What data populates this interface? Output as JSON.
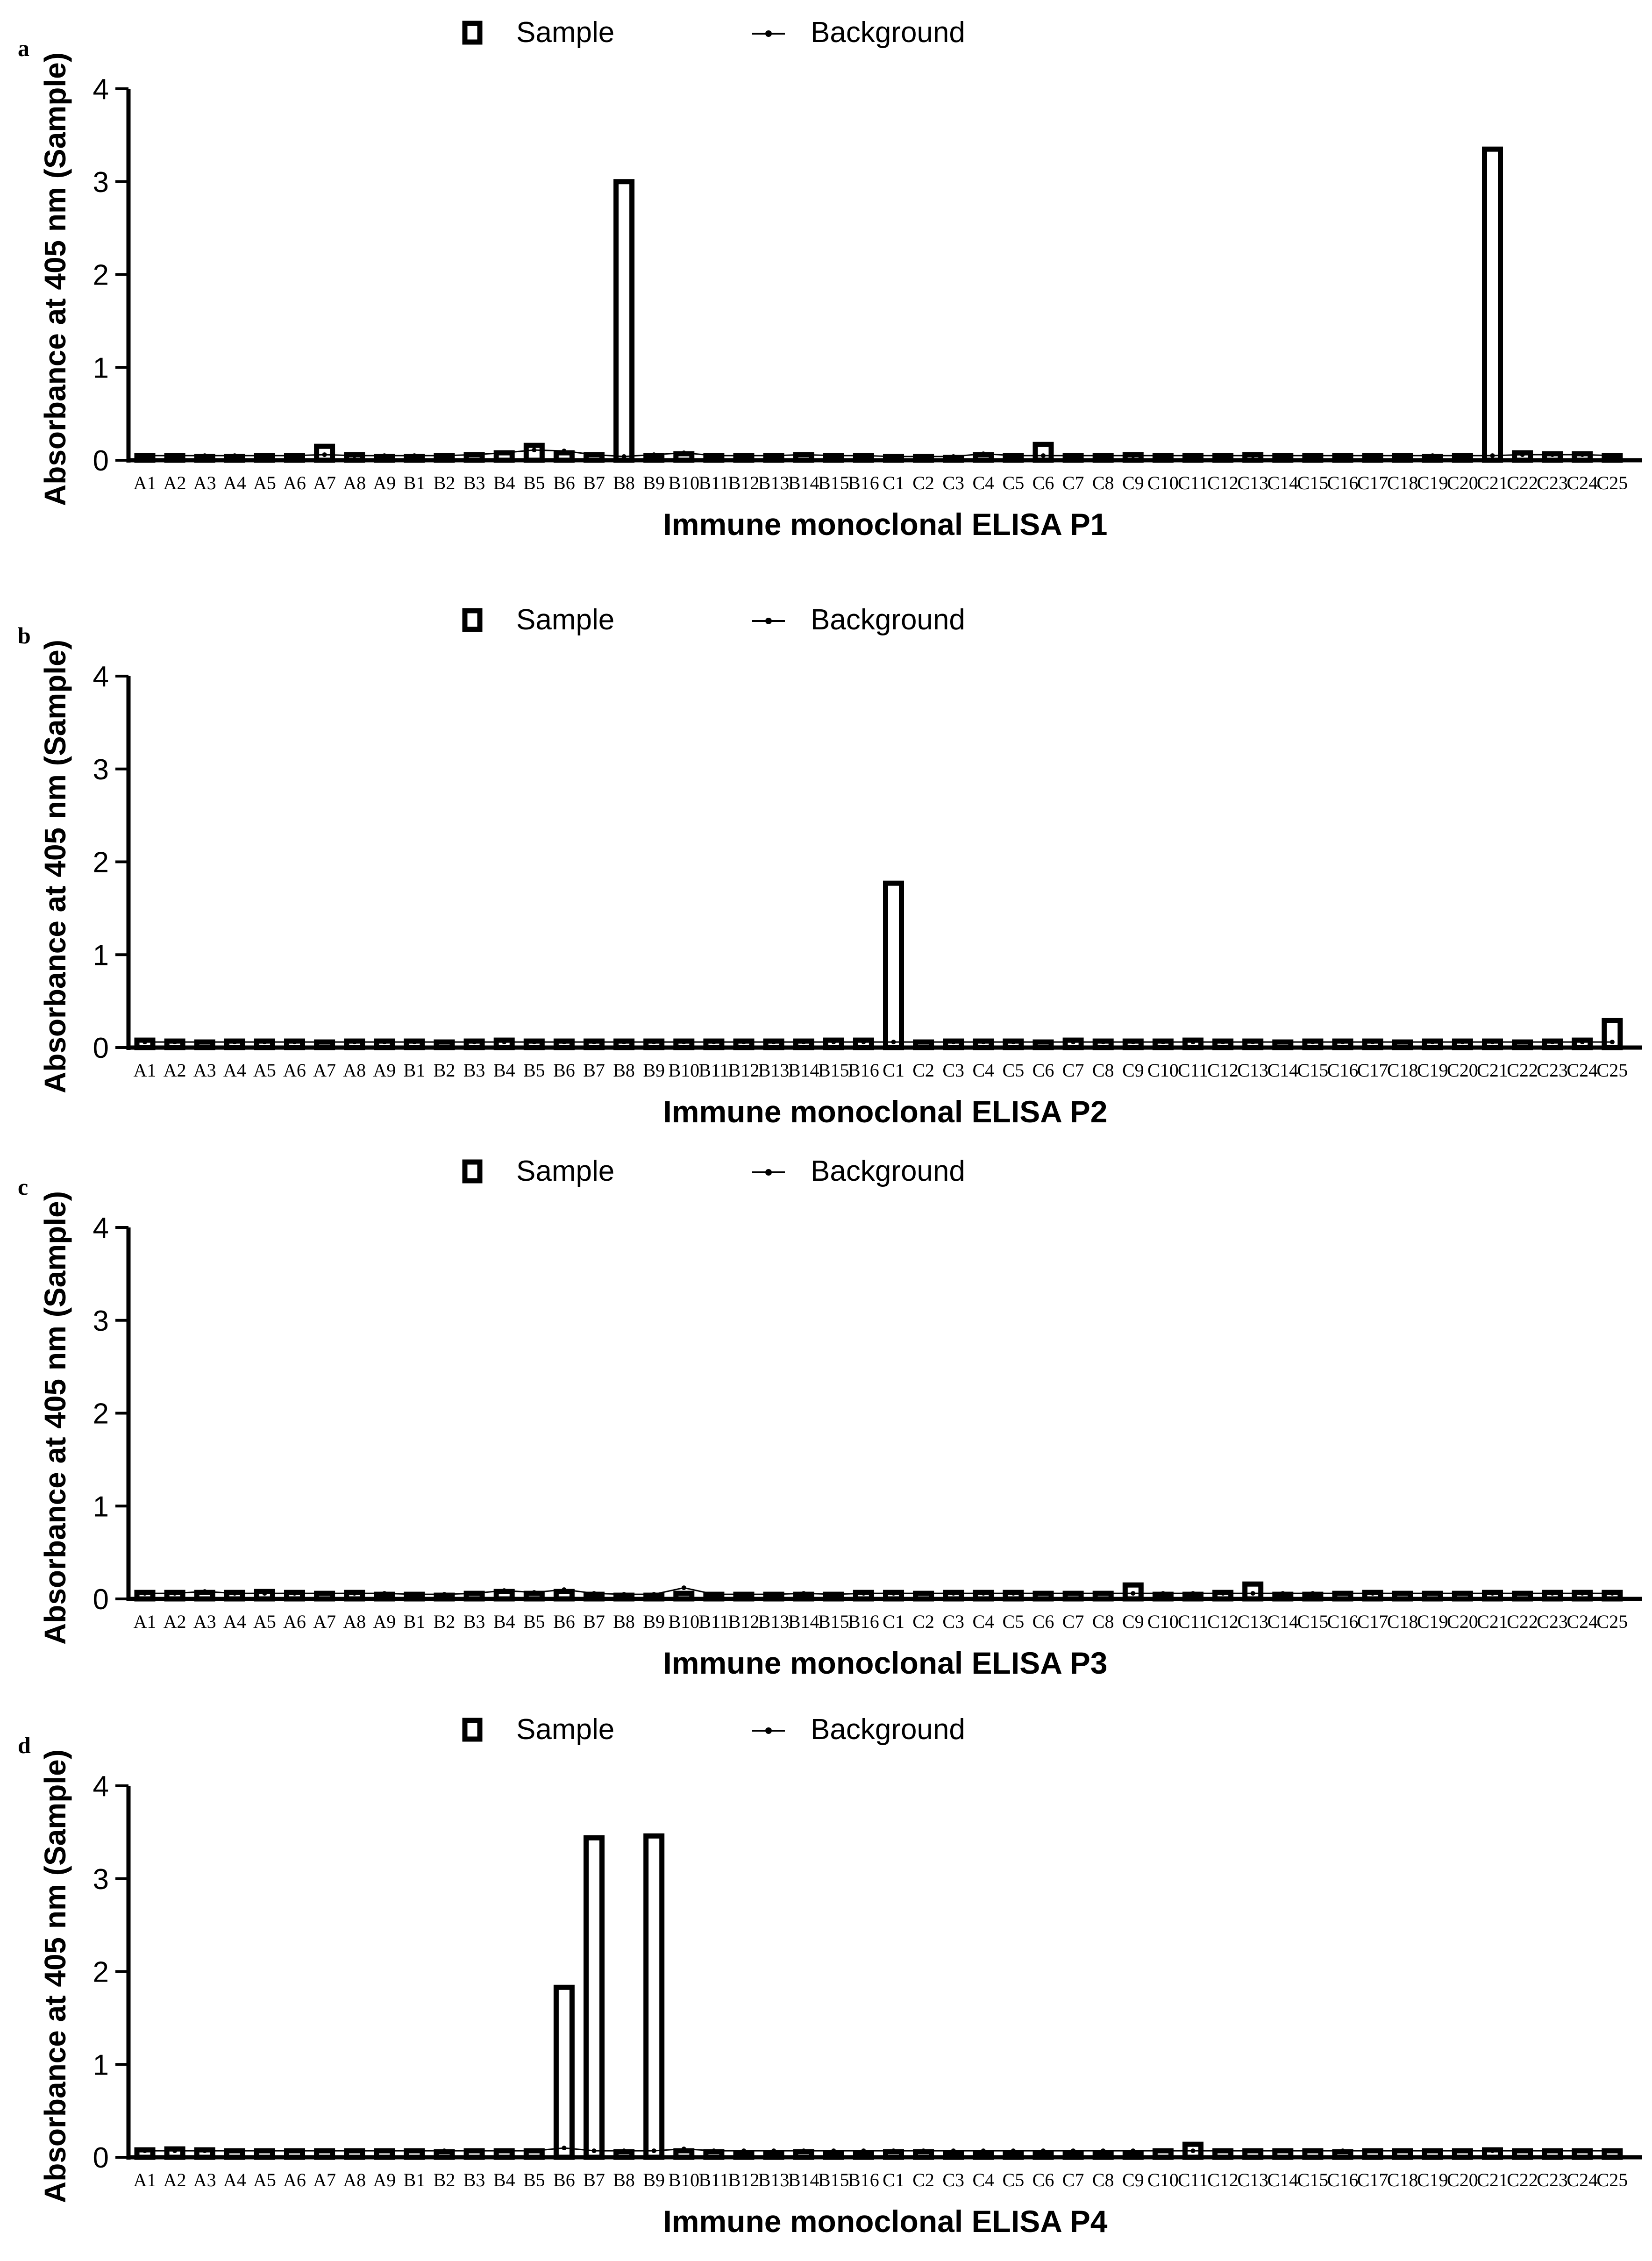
{
  "legend": {
    "sample": "Sample",
    "background": "Background"
  },
  "chart_data": [
    {
      "type": "bar",
      "panel": "a",
      "title": "",
      "xlabel": "Immune monoclonal ELISA P1",
      "ylabel": "Absorbance at 405 nm (Sample)",
      "ylim": [
        0,
        4
      ],
      "yticks": [
        "0",
        "1",
        "2",
        "3",
        "4"
      ],
      "categories": [
        "A1",
        "A2",
        "A3",
        "A4",
        "A5",
        "A6",
        "A7",
        "A8",
        "A9",
        "B1",
        "B2",
        "B3",
        "B4",
        "B5",
        "B6",
        "B7",
        "B8",
        "B9",
        "B10",
        "B11",
        "B12",
        "B13",
        "B14",
        "B15",
        "B16",
        "C1",
        "C2",
        "C3",
        "C4",
        "C5",
        "C6",
        "C7",
        "C8",
        "C9",
        "C10",
        "C11",
        "C12",
        "C13",
        "C14",
        "C15",
        "C16",
        "C17",
        "C18",
        "C19",
        "C20",
        "C21",
        "C22",
        "C23",
        "C24",
        "C25"
      ],
      "series": [
        {
          "name": "Sample",
          "values": [
            0.05,
            0.05,
            0.04,
            0.04,
            0.05,
            0.05,
            0.15,
            0.06,
            0.04,
            0.04,
            0.05,
            0.06,
            0.08,
            0.16,
            0.08,
            0.06,
            3.0,
            0.05,
            0.07,
            0.05,
            0.05,
            0.05,
            0.06,
            0.05,
            0.05,
            0.04,
            0.04,
            0.03,
            0.06,
            0.05,
            0.17,
            0.05,
            0.05,
            0.06,
            0.05,
            0.05,
            0.05,
            0.06,
            0.05,
            0.05,
            0.05,
            0.05,
            0.05,
            0.04,
            0.05,
            3.35,
            0.08,
            0.07,
            0.07,
            0.05
          ]
        },
        {
          "name": "Background",
          "values": [
            0.05,
            0.05,
            0.05,
            0.05,
            0.05,
            0.05,
            0.06,
            0.05,
            0.05,
            0.05,
            0.05,
            0.06,
            0.08,
            0.11,
            0.1,
            0.06,
            0.04,
            0.06,
            0.08,
            0.05,
            0.05,
            0.05,
            0.06,
            0.05,
            0.05,
            0.04,
            0.04,
            0.04,
            0.07,
            0.05,
            0.05,
            0.05,
            0.05,
            0.05,
            0.05,
            0.05,
            0.05,
            0.05,
            0.05,
            0.05,
            0.05,
            0.05,
            0.05,
            0.05,
            0.05,
            0.05,
            0.06,
            0.06,
            0.06,
            0.05
          ]
        }
      ]
    },
    {
      "type": "bar",
      "panel": "b",
      "title": "",
      "xlabel": "Immune monoclonal ELISA P2",
      "ylabel": "Absorbance at 405 nm (Sample)",
      "ylim": [
        0,
        4
      ],
      "yticks": [
        "0",
        "1",
        "2",
        "3",
        "4"
      ],
      "categories": [
        "A1",
        "A2",
        "A3",
        "A4",
        "A5",
        "A6",
        "A7",
        "A8",
        "A9",
        "B1",
        "B2",
        "B3",
        "B4",
        "B5",
        "B6",
        "B7",
        "B8",
        "B9",
        "B10",
        "B11",
        "B12",
        "B13",
        "B14",
        "B15",
        "B16",
        "C1",
        "C2",
        "C3",
        "C4",
        "C5",
        "C6",
        "C7",
        "C8",
        "C9",
        "C10",
        "C11",
        "C12",
        "C13",
        "C14",
        "C15",
        "C16",
        "C17",
        "C18",
        "C19",
        "C20",
        "C21",
        "C22",
        "C23",
        "C24",
        "C25"
      ],
      "series": [
        {
          "name": "Sample",
          "values": [
            0.08,
            0.07,
            0.06,
            0.07,
            0.07,
            0.07,
            0.06,
            0.07,
            0.07,
            0.07,
            0.06,
            0.07,
            0.08,
            0.07,
            0.07,
            0.07,
            0.07,
            0.07,
            0.07,
            0.07,
            0.07,
            0.07,
            0.07,
            0.08,
            0.08,
            1.77,
            0.06,
            0.07,
            0.07,
            0.07,
            0.06,
            0.08,
            0.07,
            0.07,
            0.07,
            0.08,
            0.07,
            0.07,
            0.06,
            0.07,
            0.07,
            0.07,
            0.06,
            0.07,
            0.07,
            0.07,
            0.06,
            0.07,
            0.08,
            0.29
          ]
        },
        {
          "name": "Background",
          "values": [
            0.06,
            0.06,
            0.06,
            0.06,
            0.06,
            0.06,
            0.06,
            0.06,
            0.06,
            0.06,
            0.06,
            0.06,
            0.06,
            0.06,
            0.06,
            0.06,
            0.06,
            0.06,
            0.06,
            0.06,
            0.06,
            0.06,
            0.06,
            0.06,
            0.06,
            0.06,
            0.06,
            0.06,
            0.06,
            0.06,
            0.06,
            0.06,
            0.06,
            0.06,
            0.06,
            0.06,
            0.06,
            0.06,
            0.06,
            0.06,
            0.06,
            0.06,
            0.06,
            0.06,
            0.06,
            0.06,
            0.06,
            0.06,
            0.06,
            0.06
          ]
        }
      ]
    },
    {
      "type": "bar",
      "panel": "c",
      "title": "",
      "xlabel": "Immune monoclonal ELISA P3",
      "ylabel": "Absorbance at 405 nm (Sample)",
      "ylim": [
        0,
        4
      ],
      "yticks": [
        "0",
        "1",
        "2",
        "3",
        "4"
      ],
      "categories": [
        "A1",
        "A2",
        "A3",
        "A4",
        "A5",
        "A6",
        "A7",
        "A8",
        "A9",
        "B1",
        "B2",
        "B3",
        "B4",
        "B5",
        "B6",
        "B7",
        "B8",
        "B9",
        "B10",
        "B11",
        "B12",
        "B13",
        "B14",
        "B15",
        "B16",
        "C1",
        "C2",
        "C3",
        "C4",
        "C5",
        "C6",
        "C7",
        "C8",
        "C9",
        "C10",
        "C11",
        "C12",
        "C13",
        "C14",
        "C15",
        "C16",
        "C17",
        "C18",
        "C19",
        "C20",
        "C21",
        "C22",
        "C23",
        "C24",
        "C25"
      ],
      "series": [
        {
          "name": "Sample",
          "values": [
            0.07,
            0.07,
            0.07,
            0.07,
            0.08,
            0.07,
            0.06,
            0.07,
            0.05,
            0.05,
            0.04,
            0.06,
            0.08,
            0.06,
            0.08,
            0.05,
            0.04,
            0.04,
            0.06,
            0.05,
            0.05,
            0.05,
            0.05,
            0.05,
            0.07,
            0.07,
            0.06,
            0.07,
            0.07,
            0.07,
            0.06,
            0.06,
            0.06,
            0.15,
            0.05,
            0.05,
            0.07,
            0.16,
            0.05,
            0.05,
            0.06,
            0.07,
            0.06,
            0.06,
            0.06,
            0.07,
            0.06,
            0.07,
            0.07,
            0.07
          ]
        },
        {
          "name": "Background",
          "values": [
            0.06,
            0.06,
            0.08,
            0.06,
            0.06,
            0.06,
            0.06,
            0.06,
            0.06,
            0.05,
            0.05,
            0.06,
            0.09,
            0.07,
            0.1,
            0.06,
            0.05,
            0.05,
            0.12,
            0.05,
            0.05,
            0.05,
            0.06,
            0.05,
            0.06,
            0.06,
            0.06,
            0.06,
            0.06,
            0.06,
            0.06,
            0.06,
            0.06,
            0.06,
            0.06,
            0.06,
            0.06,
            0.06,
            0.06,
            0.06,
            0.06,
            0.06,
            0.06,
            0.06,
            0.06,
            0.06,
            0.06,
            0.06,
            0.06,
            0.06
          ]
        }
      ]
    },
    {
      "type": "bar",
      "panel": "d",
      "title": "",
      "xlabel": "Immune monoclonal ELISA P4",
      "ylabel": "Absorbance at 405 nm (Sample)",
      "ylim": [
        0,
        4
      ],
      "yticks": [
        "0",
        "1",
        "2",
        "3",
        "4"
      ],
      "categories": [
        "A1",
        "A2",
        "A3",
        "A4",
        "A5",
        "A6",
        "A7",
        "A8",
        "A9",
        "B1",
        "B2",
        "B3",
        "B4",
        "B5",
        "B6",
        "B7",
        "B8",
        "B9",
        "B10",
        "B11",
        "B12",
        "B13",
        "B14",
        "B15",
        "B16",
        "C1",
        "C2",
        "C3",
        "C4",
        "C5",
        "C6",
        "C7",
        "C8",
        "C9",
        "C10",
        "C11",
        "C12",
        "C13",
        "C14",
        "C15",
        "C16",
        "C17",
        "C18",
        "C19",
        "C20",
        "C21",
        "C22",
        "C23",
        "C24",
        "C25"
      ],
      "series": [
        {
          "name": "Sample",
          "values": [
            0.08,
            0.09,
            0.08,
            0.07,
            0.07,
            0.07,
            0.07,
            0.07,
            0.07,
            0.07,
            0.06,
            0.07,
            0.07,
            0.07,
            1.83,
            3.44,
            0.06,
            3.46,
            0.07,
            0.06,
            0.05,
            0.05,
            0.06,
            0.05,
            0.05,
            0.06,
            0.06,
            0.05,
            0.05,
            0.05,
            0.05,
            0.05,
            0.05,
            0.05,
            0.07,
            0.14,
            0.07,
            0.07,
            0.07,
            0.07,
            0.06,
            0.07,
            0.07,
            0.07,
            0.07,
            0.08,
            0.07,
            0.07,
            0.07,
            0.07
          ]
        },
        {
          "name": "Background",
          "values": [
            0.07,
            0.07,
            0.07,
            0.07,
            0.07,
            0.07,
            0.07,
            0.07,
            0.07,
            0.07,
            0.07,
            0.07,
            0.07,
            0.07,
            0.1,
            0.07,
            0.07,
            0.07,
            0.09,
            0.07,
            0.07,
            0.07,
            0.07,
            0.07,
            0.07,
            0.07,
            0.07,
            0.07,
            0.07,
            0.07,
            0.07,
            0.07,
            0.07,
            0.07,
            0.07,
            0.07,
            0.07,
            0.07,
            0.07,
            0.07,
            0.07,
            0.07,
            0.07,
            0.07,
            0.07,
            0.07,
            0.07,
            0.07,
            0.07,
            0.07
          ]
        }
      ]
    }
  ]
}
